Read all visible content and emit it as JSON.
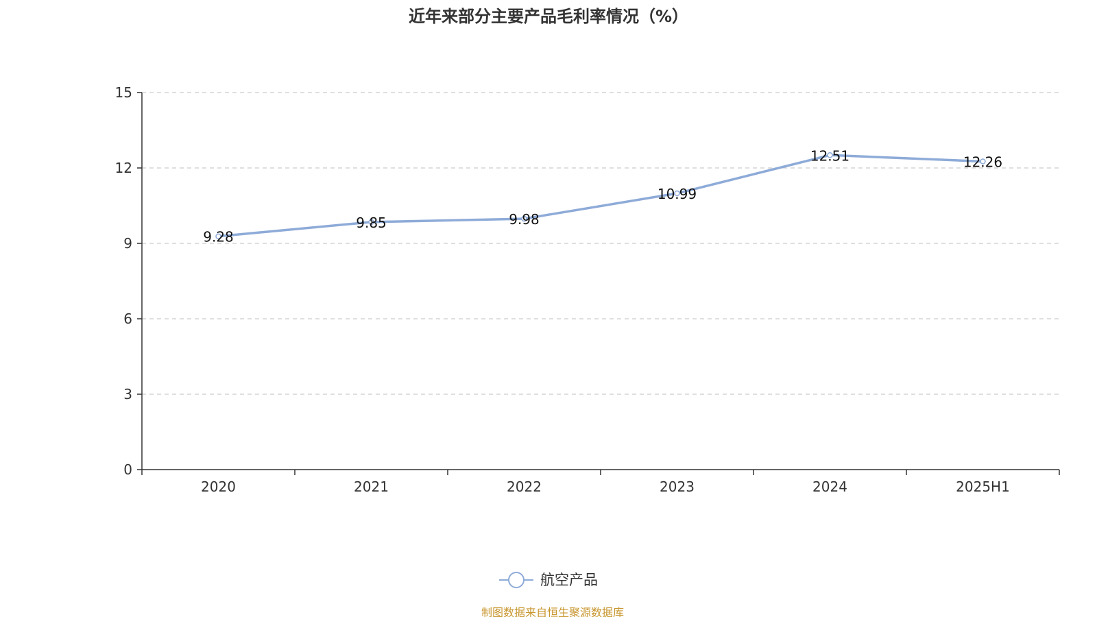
{
  "chart_data": {
    "type": "line",
    "title": "近年来部分主要产品毛利率情况（%）",
    "categories": [
      "2020",
      "2021",
      "2022",
      "2023",
      "2024",
      "2025H1"
    ],
    "series": [
      {
        "name": "航空产品",
        "values": [
          9.28,
          9.85,
          9.98,
          10.99,
          12.51,
          12.26
        ],
        "color": "#8eabd8"
      }
    ],
    "data_labels": [
      "9.28",
      "9.85",
      "9.98",
      "10.99",
      "12.51",
      "12.26"
    ],
    "ylim": [
      0,
      15
    ],
    "yticks": [
      "0",
      "3",
      "6",
      "9",
      "12",
      "15"
    ],
    "grid": true,
    "legend_position": "bottom-center"
  },
  "source_note": "制图数据来自恒生聚源数据库",
  "colors": {
    "line": "#8eabd8",
    "grid": "#cccccc",
    "axis": "#333333",
    "source": "#c8962e"
  }
}
